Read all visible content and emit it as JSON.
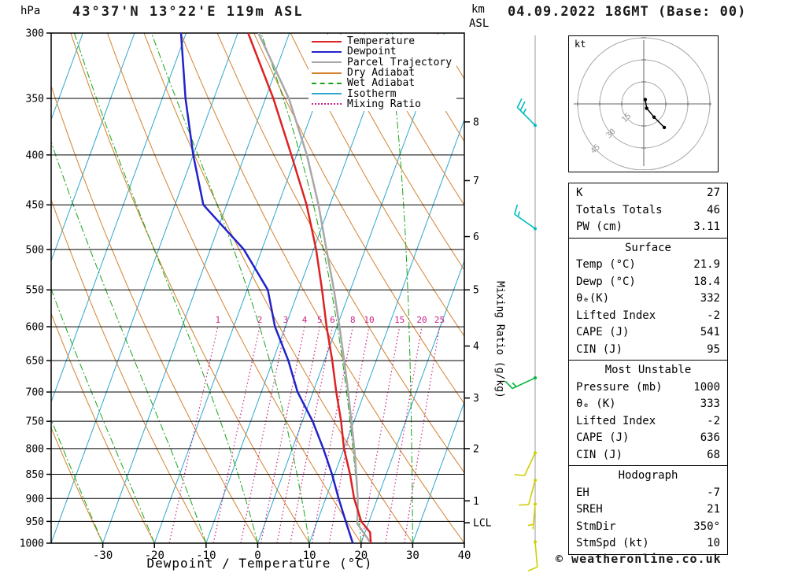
{
  "header": {
    "pressure_unit": "hPa",
    "title": "43°37'N 13°22'E 119m ASL",
    "datetime": "04.09.2022 18GMT (Base: 00)",
    "km_label": "km",
    "asl_label": "ASL"
  },
  "axes": {
    "pressure_ticks": [
      300,
      350,
      400,
      450,
      500,
      550,
      600,
      650,
      700,
      750,
      800,
      850,
      900,
      950,
      1000
    ],
    "temp_ticks": [
      -30,
      -20,
      -10,
      0,
      10,
      20,
      30,
      40
    ],
    "xlabel": "Dewpoint / Temperature (°C)",
    "mixing_ratio_label": "Mixing Ratio (g/kg)",
    "mixing_ratio_values": [
      1,
      2,
      3,
      4,
      5,
      6,
      8,
      10,
      15,
      20,
      25
    ],
    "km_ticks": [
      {
        "label": "8",
        "p": 370
      },
      {
        "label": "7",
        "p": 425
      },
      {
        "label": "6",
        "p": 485
      },
      {
        "label": "5",
        "p": 550
      },
      {
        "label": "4",
        "p": 628
      },
      {
        "label": "3",
        "p": 710
      },
      {
        "label": "2",
        "p": 800
      },
      {
        "label": "1",
        "p": 905
      },
      {
        "label": "LCL",
        "p": 953
      }
    ]
  },
  "colors": {
    "isotherm": "#2ea7cc",
    "dry_adiabat": "#d3822e",
    "wet_adiabat": "#18a418",
    "mixing_ratio": "#cc2288",
    "grid": "#000000",
    "wind_column": "#999999"
  },
  "legend": [
    {
      "label": "Temperature",
      "color": "#dd2222",
      "style": "solid"
    },
    {
      "label": "Dewpoint",
      "color": "#2222cc",
      "style": "solid"
    },
    {
      "label": "Parcel Trajectory",
      "color": "#a8a8a8",
      "style": "solid"
    },
    {
      "label": "Dry Adiabat",
      "color": "#d3822e",
      "style": "solid"
    },
    {
      "label": "Wet Adiabat",
      "color": "#18a418",
      "style": "dashed"
    },
    {
      "label": "Isotherm",
      "color": "#2ea7cc",
      "style": "solid"
    },
    {
      "label": "Mixing Ratio",
      "color": "#cc2288",
      "style": "dotted"
    }
  ],
  "chart_data": {
    "type": "line",
    "title": "Skew-T log-P sounding 43°37'N 13°22'E 119m ASL",
    "x_axis": {
      "label": "Dewpoint / Temperature (°C)",
      "range": [
        -40,
        40
      ],
      "skewed": true
    },
    "y_axis": {
      "label": "hPa",
      "scale": "log",
      "range": [
        1000,
        300
      ]
    },
    "series": [
      {
        "name": "Parcel Trajectory",
        "color": "#a8a8a8",
        "points": [
          [
            1000,
            21.9
          ],
          [
            955,
            17.9
          ],
          [
            900,
            16.2
          ],
          [
            850,
            14.2
          ],
          [
            800,
            12.0
          ],
          [
            750,
            9.5
          ],
          [
            700,
            6.8
          ],
          [
            650,
            3.8
          ],
          [
            600,
            0.5
          ],
          [
            550,
            -3.2
          ],
          [
            500,
            -7.5
          ],
          [
            450,
            -12.2
          ],
          [
            400,
            -18.0
          ],
          [
            350,
            -25.5
          ],
          [
            300,
            -36.0
          ]
        ]
      },
      {
        "name": "Temperature",
        "color": "#dd2222",
        "points": [
          [
            1000,
            21.9
          ],
          [
            975,
            21.0
          ],
          [
            950,
            18.5
          ],
          [
            900,
            15.5
          ],
          [
            850,
            13.0
          ],
          [
            800,
            10.0
          ],
          [
            750,
            7.5
          ],
          [
            700,
            4.5
          ],
          [
            650,
            1.5
          ],
          [
            600,
            -2.0
          ],
          [
            550,
            -5.5
          ],
          [
            500,
            -9.5
          ],
          [
            450,
            -14.5
          ],
          [
            400,
            -21.0
          ],
          [
            350,
            -28.5
          ],
          [
            300,
            -38.0
          ]
        ]
      },
      {
        "name": "Dewpoint",
        "color": "#2222cc",
        "points": [
          [
            1000,
            18.4
          ],
          [
            950,
            15.5
          ],
          [
            900,
            12.5
          ],
          [
            850,
            9.5
          ],
          [
            800,
            6.0
          ],
          [
            750,
            2.0
          ],
          [
            700,
            -3.0
          ],
          [
            650,
            -7.0
          ],
          [
            600,
            -12.0
          ],
          [
            550,
            -16.0
          ],
          [
            500,
            -23.5
          ],
          [
            450,
            -34.5
          ],
          [
            400,
            -40.0
          ],
          [
            350,
            -45.5
          ],
          [
            300,
            -51.0
          ]
        ]
      }
    ]
  },
  "wind_barbs": [
    {
      "p": 373,
      "dir": 315,
      "speed": 25,
      "color": "#00bcbc"
    },
    {
      "p": 476,
      "dir": 305,
      "speed": 15,
      "color": "#00bcbc"
    },
    {
      "p": 677,
      "dir": 245,
      "speed": 15,
      "color": "#00b435"
    },
    {
      "p": 808,
      "dir": 205,
      "speed": 10,
      "color": "#cfcf00"
    },
    {
      "p": 862,
      "dir": 195,
      "speed": 10,
      "color": "#cfcf00"
    },
    {
      "p": 912,
      "dir": 185,
      "speed": 5,
      "color": "#cfcf00"
    },
    {
      "p": 997,
      "dir": 175,
      "speed": 10,
      "color": "#cfcf00"
    }
  ],
  "hodograph": {
    "unit": "kt",
    "rings": [
      15,
      30,
      45
    ],
    "trace": [
      {
        "u": 1,
        "v": 3
      },
      {
        "u": 2,
        "v": -3
      },
      {
        "u": 7,
        "v": -9
      },
      {
        "u": 14,
        "v": -16
      }
    ]
  },
  "stats_boxes": [
    {
      "rows": [
        [
          "K",
          "27"
        ],
        [
          "Totals Totals",
          "46"
        ],
        [
          "PW (cm)",
          "3.11"
        ]
      ]
    },
    {
      "title": "Surface",
      "rows": [
        [
          "Temp (°C)",
          "21.9"
        ],
        [
          "Dewp (°C)",
          "18.4"
        ],
        [
          "θₑ(K)",
          "332"
        ],
        [
          "Lifted Index",
          "-2"
        ],
        [
          "CAPE (J)",
          "541"
        ],
        [
          "CIN (J)",
          "95"
        ]
      ]
    },
    {
      "title": "Most Unstable",
      "rows": [
        [
          "Pressure (mb)",
          "1000"
        ],
        [
          "θₑ (K)",
          "333"
        ],
        [
          "Lifted Index",
          "-2"
        ],
        [
          "CAPE (J)",
          "636"
        ],
        [
          "CIN (J)",
          "68"
        ]
      ]
    },
    {
      "title": "Hodograph",
      "rows": [
        [
          "EH",
          "-7"
        ],
        [
          "SREH",
          "21"
        ],
        [
          "StmDir",
          "350°"
        ],
        [
          "StmSpd (kt)",
          "10"
        ]
      ]
    }
  ],
  "footer": {
    "copyright": "© weatheronline.co.uk"
  }
}
